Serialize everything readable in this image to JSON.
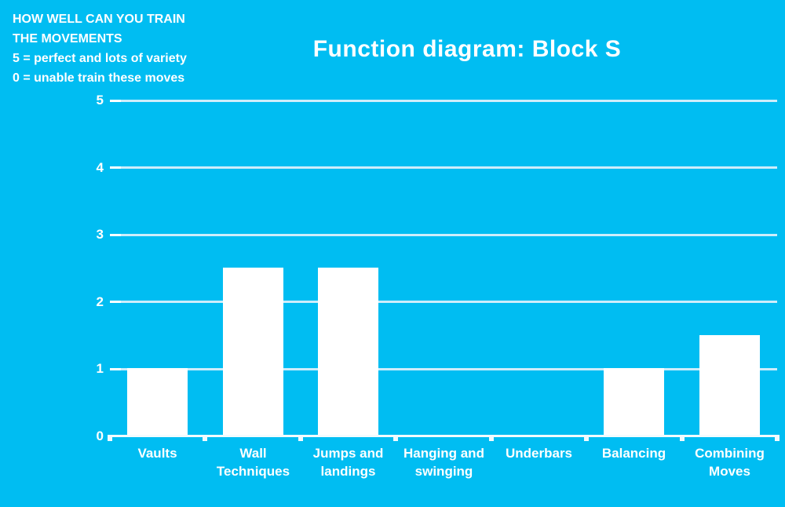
{
  "header": {
    "note": "HOW WELL CAN YOU TRAIN\nTHE MOVEMENTS\n5 = perfect and lots of variety\n0 = unable train these moves"
  },
  "colors": {
    "background": "#00BDF2",
    "bar": "#FFFFFF",
    "gridline": "#CDEDFB",
    "axis": "#F2FBFE",
    "text": "#FFFFFF"
  },
  "chart_data": {
    "type": "bar",
    "title": "Function diagram: Block S",
    "categories": [
      "Vaults",
      "Wall Techniques",
      "Jumps and landings",
      "Hanging and swinging",
      "Underbars",
      "Balancing",
      "Combining Moves"
    ],
    "values": [
      1,
      2.5,
      2.5,
      0,
      0,
      1,
      1.5
    ],
    "xlabel": "",
    "ylabel": "",
    "ylim": [
      0,
      5
    ],
    "yticks": [
      0,
      1,
      2,
      3,
      4,
      5
    ],
    "grid": "horizontal",
    "legend": "none",
    "bar_color": "#FFFFFF"
  }
}
